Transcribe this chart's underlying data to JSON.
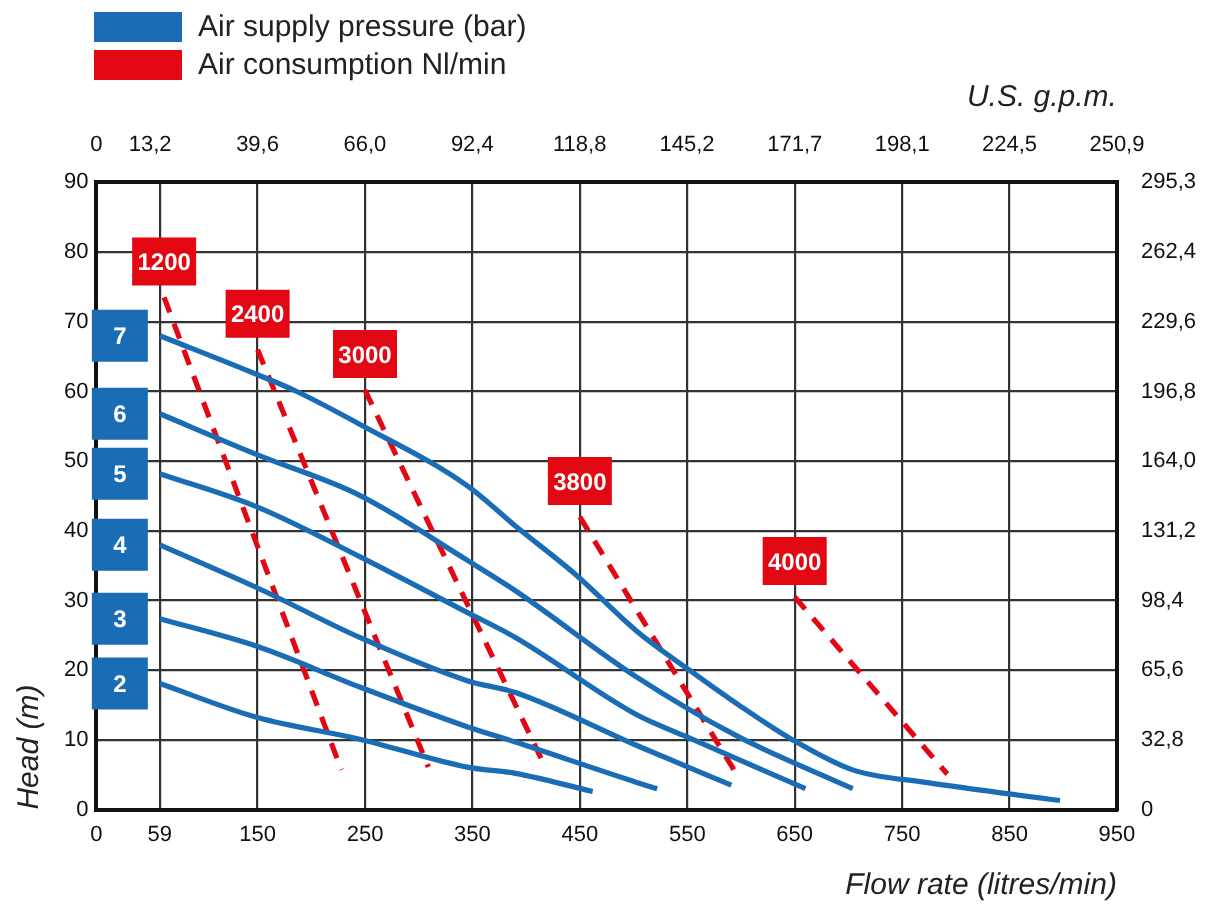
{
  "chart_data": {
    "type": "line",
    "xlabel": "Flow rate (litres/min)",
    "ylabel": "Head (m)",
    "x2label": "U.S. g.p.m.",
    "xlim": [
      0,
      950
    ],
    "xticks": [
      0,
      59,
      150,
      250,
      350,
      450,
      550,
      650,
      750,
      850,
      950
    ],
    "ylim": [
      0,
      90
    ],
    "yticks": [
      0,
      10,
      20,
      30,
      40,
      50,
      60,
      70,
      80,
      90
    ],
    "x2lim": [
      0,
      250.9
    ],
    "x2ticks": [
      0,
      {
        "value": 13.2,
        "label": "13,2"
      },
      {
        "value": 39.6,
        "label": "39,6"
      },
      {
        "value": 66.0,
        "label": "66,0"
      },
      {
        "value": 92.4,
        "label": "92,4"
      },
      {
        "value": 118.8,
        "label": "118,8"
      },
      {
        "value": 145.2,
        "label": "145,2"
      },
      {
        "value": 171.7,
        "label": "171,7"
      },
      {
        "value": 198.1,
        "label": "198,1"
      },
      {
        "value": 224.5,
        "label": "224,5"
      },
      {
        "value": 250.9,
        "label": "250,9"
      }
    ],
    "y2lim": [
      0,
      295.3
    ],
    "y2ticks": [
      0,
      {
        "value": 32.8,
        "label": "32,8"
      },
      {
        "value": 65.6,
        "label": "65,6"
      },
      {
        "value": 98.4,
        "label": "98,4"
      },
      {
        "value": 131.2,
        "label": "131,2"
      },
      {
        "value": 164.0,
        "label": "164,0"
      },
      {
        "value": 196.8,
        "label": "196,8"
      },
      {
        "value": 229.6,
        "label": "229,6"
      },
      {
        "value": 262.4,
        "label": "262,4"
      },
      {
        "value": 295.3,
        "label": "295,3"
      }
    ],
    "grid": true,
    "marker": "none",
    "legend": "left",
    "annotations": [
      "Air supply pressure (bar)",
      "Air consumption Nl/min"
    ],
    "series": [
      {
        "name": "7",
        "color": "#1a6db5",
        "line_style": "solid",
        "x": [
          59,
          150,
          185,
          245,
          345,
          390,
          447,
          503,
          553,
          597,
          647,
          704,
          772,
          897
        ],
        "values": [
          68,
          62.4,
          60.1,
          55.3,
          46.5,
          40.7,
          33.6,
          25.6,
          19.9,
          15.1,
          10.1,
          5.7,
          3.9,
          1.3
        ]
      },
      {
        "name": "6",
        "color": "#1a6db5",
        "line_style": "solid",
        "x": [
          59,
          150,
          245,
          345,
          390,
          503,
          597,
          704
        ],
        "values": [
          56.8,
          50.9,
          45.1,
          35.8,
          31.4,
          19,
          10.5,
          3
        ]
      },
      {
        "name": "5",
        "color": "#1a6db5",
        "line_style": "solid",
        "x": [
          59,
          150,
          245,
          345,
          390,
          503,
          547,
          660
        ],
        "values": [
          48.2,
          43.4,
          36.3,
          28.3,
          24.7,
          13.6,
          10.6,
          3
        ]
      },
      {
        "name": "4",
        "color": "#1a6db5",
        "line_style": "solid",
        "x": [
          59,
          150,
          245,
          345,
          390,
          503,
          591
        ],
        "values": [
          38,
          31.8,
          24.7,
          18.5,
          16.8,
          9.2,
          3.5
        ]
      },
      {
        "name": "3",
        "color": "#1a6db5",
        "line_style": "solid",
        "x": [
          59,
          150,
          245,
          345,
          390,
          503,
          522
        ],
        "values": [
          27.4,
          23.4,
          17.6,
          11.9,
          9.7,
          3.9,
          3
        ]
      },
      {
        "name": "2",
        "color": "#1a6db5",
        "line_style": "solid",
        "x": [
          59,
          150,
          245,
          345,
          390,
          462
        ],
        "values": [
          18.1,
          13.2,
          10.1,
          6.1,
          5.2,
          2.6
        ]
      },
      {
        "name": "1200",
        "color": "#e30613",
        "line_style": "dashed",
        "x": [
          63,
          228
        ],
        "values": [
          73.5,
          5.7
        ]
      },
      {
        "name": "2400",
        "color": "#e30613",
        "line_style": "dashed",
        "x": [
          150,
          309
        ],
        "values": [
          66,
          6.1
        ]
      },
      {
        "name": "3000",
        "color": "#e30613",
        "line_style": "dashed",
        "x": [
          250,
          415
        ],
        "values": [
          60.2,
          7
        ]
      },
      {
        "name": "3800",
        "color": "#e30613",
        "line_style": "dashed",
        "x": [
          450,
          597
        ],
        "values": [
          42,
          4.8
        ]
      },
      {
        "name": "4000",
        "color": "#e30613",
        "line_style": "dashed",
        "x": [
          650,
          792
        ],
        "values": [
          30.5,
          5.1
        ]
      }
    ]
  }
}
